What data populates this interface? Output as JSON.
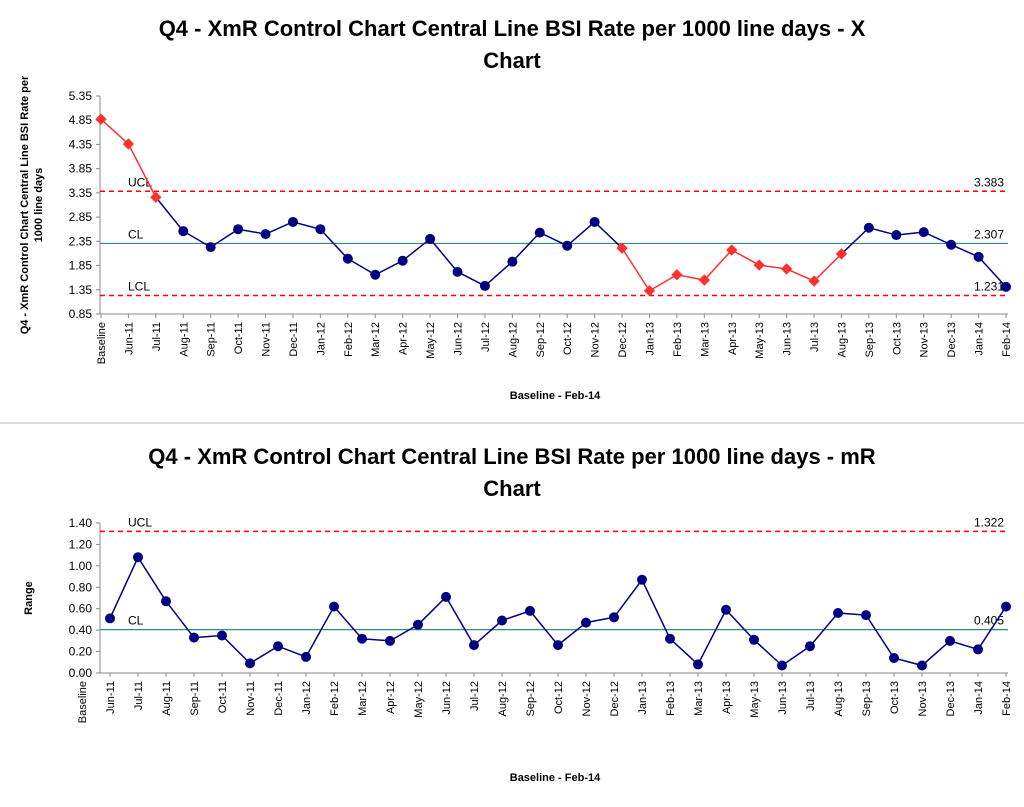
{
  "chart_data": [
    {
      "type": "line",
      "title_lines": [
        "Q4 - XmR Control Chart Central Line BSI Rate per 1000 line days - X",
        "Chart"
      ],
      "xlabel": "Baseline - Feb-14",
      "ylabel_lines": [
        "Q4 - XmR Control Chart Central Line BSI Rate per",
        "1000 line days"
      ],
      "ylim": [
        0.85,
        5.35
      ],
      "yticks": [
        "0.85",
        "1.35",
        "1.85",
        "2.35",
        "2.85",
        "3.35",
        "3.85",
        "4.35",
        "4.85",
        "5.35"
      ],
      "categories": [
        "Baseline",
        "Jun-11",
        "Jul-11",
        "Aug-11",
        "Sep-11",
        "Oct-11",
        "Nov-11",
        "Dec-11",
        "Jan-12",
        "Feb-12",
        "Mar-12",
        "Apr-12",
        "May-12",
        "Jun-12",
        "Jul-12",
        "Aug-12",
        "Sep-12",
        "Oct-12",
        "Nov-12",
        "Dec-12",
        "Jan-13",
        "Feb-13",
        "Mar-13",
        "Apr-13",
        "May-13",
        "Jun-13",
        "Jul-13",
        "Aug-13",
        "Sep-13",
        "Oct-13",
        "Nov-13",
        "Dec-13",
        "Jan-14",
        "Feb-14"
      ],
      "values": [
        4.87,
        4.36,
        3.26,
        2.56,
        2.23,
        2.6,
        2.5,
        2.75,
        2.6,
        1.99,
        1.66,
        1.95,
        2.4,
        1.72,
        1.43,
        1.93,
        2.53,
        2.26,
        2.75,
        2.21,
        1.33,
        1.66,
        1.55,
        2.17,
        1.86,
        1.78,
        1.53,
        2.09,
        2.63,
        2.48,
        2.54,
        2.28,
        2.03,
        1.41
      ],
      "signal_flags": [
        1,
        1,
        1,
        0,
        0,
        0,
        0,
        0,
        0,
        0,
        0,
        0,
        0,
        0,
        0,
        0,
        0,
        0,
        0,
        1,
        1,
        1,
        1,
        1,
        1,
        1,
        1,
        1,
        0,
        0,
        0,
        0,
        0,
        0
      ],
      "limits": {
        "UCL": 3.383,
        "CL": 2.307,
        "LCL": 1.231
      },
      "limit_labels": {
        "UCL": "UCL",
        "CL": "CL",
        "LCL": "LCL",
        "UCL_value": "3.383",
        "CL_value": "2.307",
        "LCL_value": "1.231"
      },
      "colors": {
        "series": "#000080",
        "signal": "#ff3030",
        "limit": "#ff0000",
        "center": "#2e8b8b"
      },
      "grid": false
    },
    {
      "type": "line",
      "title_lines": [
        "Q4 - XmR Control Chart Central Line BSI Rate per 1000 line days - mR",
        "Chart"
      ],
      "xlabel": "Baseline - Feb-14",
      "ylabel_lines": [
        "Range"
      ],
      "ylim": [
        0,
        1.4
      ],
      "yticks": [
        "0.00",
        "0.20",
        "0.40",
        "0.60",
        "0.80",
        "1.00",
        "1.20",
        "1.40"
      ],
      "categories": [
        "Baseline",
        "Jun-11",
        "Jul-11",
        "Aug-11",
        "Sep-11",
        "Oct-11",
        "Nov-11",
        "Dec-11",
        "Jan-12",
        "Feb-12",
        "Mar-12",
        "Apr-12",
        "May-12",
        "Jun-12",
        "Jul-12",
        "Aug-12",
        "Sep-12",
        "Oct-12",
        "Nov-12",
        "Dec-12",
        "Jan-13",
        "Feb-13",
        "Mar-13",
        "Apr-13",
        "May-13",
        "Jun-13",
        "Jul-13",
        "Aug-13",
        "Sep-13",
        "Oct-13",
        "Nov-13",
        "Dec-13",
        "Jan-14",
        "Feb-14"
      ],
      "values": [
        null,
        0.51,
        1.08,
        0.67,
        0.33,
        0.35,
        0.09,
        0.25,
        0.15,
        0.62,
        0.32,
        0.3,
        0.45,
        0.71,
        0.26,
        0.49,
        0.58,
        0.26,
        0.47,
        0.52,
        0.87,
        0.32,
        0.08,
        0.59,
        0.31,
        0.07,
        0.25,
        0.56,
        0.54,
        0.14,
        0.07,
        0.3,
        0.22,
        0.62
      ],
      "limits": {
        "UCL": 1.322,
        "CL": 0.405
      },
      "limit_labels": {
        "UCL": "UCL",
        "CL": "CL",
        "UCL_value": "1.322",
        "CL_value": "0.405"
      },
      "colors": {
        "series": "#000080",
        "limit": "#ff0000",
        "center": "#2e8b8b"
      },
      "grid": false
    }
  ]
}
